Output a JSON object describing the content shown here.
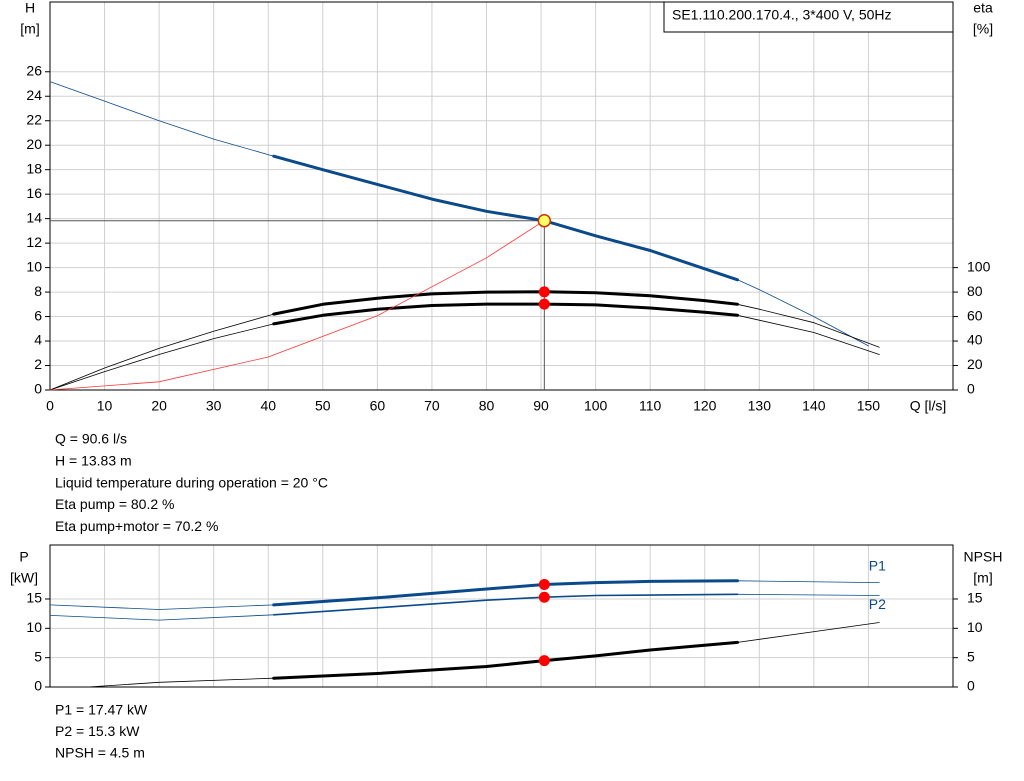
{
  "chart_data": [
    {
      "type": "line",
      "title": "SE1.110.200.170.4., 3*400 V, 50Hz",
      "y_label": [
        "H",
        "[m]"
      ],
      "y2_label": [
        "eta",
        "[%]"
      ],
      "x_label": "Q [l/s]",
      "xlim": [
        0,
        165.5
      ],
      "ylim": [
        0,
        31.7
      ],
      "y2lim": [
        0,
        317
      ],
      "xticks": [
        0,
        10,
        20,
        30,
        40,
        50,
        60,
        70,
        80,
        90,
        100,
        110,
        120,
        130,
        140,
        150
      ],
      "yticks": [
        0,
        2,
        4,
        6,
        8,
        10,
        12,
        14,
        16,
        18,
        20,
        22,
        24,
        26
      ],
      "y2ticks": [
        0,
        20,
        40,
        60,
        80,
        100
      ],
      "grid": true,
      "series": [
        {
          "color": "#0a4a8a",
          "width": 0.8,
          "x": [
            0,
            10,
            20,
            30,
            41,
            50,
            60,
            70,
            80,
            90.6,
            100,
            110,
            120,
            126,
            130,
            140,
            150
          ],
          "values": [
            25.2,
            23.6,
            22.0,
            20.5,
            19.1,
            18.0,
            16.8,
            15.6,
            14.6,
            13.83,
            12.6,
            11.4,
            9.9,
            9.0,
            8.2,
            6.0,
            3.6
          ]
        },
        {
          "color": "#0a4a8a",
          "width": 3,
          "x": [
            41,
            50,
            60,
            70,
            80,
            90.6,
            100,
            110,
            120,
            126
          ],
          "values": [
            19.1,
            18.0,
            16.8,
            15.6,
            14.6,
            13.83,
            12.6,
            11.4,
            9.9,
            9.0
          ]
        },
        {
          "color": "#000000",
          "width": 0.8,
          "axis": "y2",
          "x": [
            0,
            10,
            20,
            30,
            41,
            50,
            60,
            70,
            80,
            90.6,
            100,
            110,
            120,
            126,
            130,
            140,
            152
          ],
          "values": [
            0,
            18,
            34,
            48,
            62,
            70,
            75,
            78.5,
            80,
            80.2,
            79.5,
            77,
            73,
            70,
            66,
            55,
            35
          ]
        },
        {
          "color": "#000000",
          "width": 3,
          "axis": "y2",
          "x": [
            41,
            50,
            60,
            70,
            80,
            90.6,
            100,
            110,
            120,
            126
          ],
          "values": [
            62,
            70,
            75,
            78.5,
            80,
            80.2,
            79.5,
            77,
            73,
            70
          ]
        },
        {
          "color": "#000000",
          "width": 0.8,
          "axis": "y2",
          "x": [
            0,
            10,
            20,
            30,
            41,
            50,
            60,
            70,
            80,
            90.6,
            100,
            110,
            120,
            126,
            130,
            140,
            152
          ],
          "values": [
            0,
            15,
            29,
            42,
            54,
            61,
            66,
            69,
            70.2,
            70.2,
            69.5,
            67,
            63.5,
            61,
            57,
            47,
            29
          ]
        },
        {
          "color": "#000000",
          "width": 3,
          "axis": "y2",
          "x": [
            41,
            50,
            60,
            70,
            80,
            90.6,
            100,
            110,
            120,
            126
          ],
          "values": [
            54,
            61,
            66,
            69,
            70.2,
            70.2,
            69.5,
            67,
            63.5,
            61
          ]
        },
        {
          "color": "#ff3333",
          "width": 0.8,
          "x": [
            0,
            20,
            40,
            60,
            80,
            90.6
          ],
          "values": [
            0,
            0.67,
            2.7,
            6.07,
            10.8,
            13.83
          ]
        }
      ],
      "markers": [
        {
          "x": 90.6,
          "y": 13.83,
          "color": "#ffff66",
          "crosshair": true
        },
        {
          "x": 90.6,
          "y": 80.2,
          "axis": "y2",
          "color": "#ff0000"
        },
        {
          "x": 90.6,
          "y": 70.2,
          "axis": "y2",
          "color": "#ff0000"
        }
      ],
      "info": [
        "Q = 90.6 l/s",
        "H = 13.83 m",
        "Liquid temperature during operation = 20 °C",
        "Eta pump = 80.2 %",
        "Eta pump+motor = 70.2 %"
      ]
    },
    {
      "type": "line",
      "y_label": [
        "P",
        "[kW]"
      ],
      "y2_label": [
        "NPSH",
        "[m]"
      ],
      "xlim": [
        0,
        165.5
      ],
      "ylim": [
        0,
        24.2
      ],
      "y2lim": [
        0,
        24.2
      ],
      "xticks": [
        0,
        10,
        20,
        30,
        40,
        50,
        60,
        70,
        80,
        90,
        100,
        110,
        120,
        130,
        140,
        150
      ],
      "yticks": [
        0,
        5,
        10,
        15
      ],
      "y2ticks": [
        0,
        5,
        10,
        15
      ],
      "grid": true,
      "series": [
        {
          "name": "P1",
          "color": "#0a4a8a",
          "width": 0.8,
          "x": [
            0,
            20,
            41,
            60,
            80,
            90.6,
            100,
            110,
            126,
            152
          ],
          "values": [
            14.0,
            13.2,
            14.0,
            15.2,
            16.7,
            17.47,
            17.8,
            18.0,
            18.1,
            17.8
          ]
        },
        {
          "color": "#0a4a8a",
          "width": 3,
          "x": [
            41,
            60,
            80,
            90.6,
            100,
            110,
            126
          ],
          "values": [
            14.0,
            15.2,
            16.7,
            17.47,
            17.8,
            18.0,
            18.1
          ]
        },
        {
          "name": "P2",
          "color": "#0a4a8a",
          "width": 0.8,
          "x": [
            0,
            20,
            41,
            60,
            80,
            90.6,
            100,
            126,
            152
          ],
          "values": [
            12.2,
            11.4,
            12.3,
            13.5,
            14.8,
            15.3,
            15.6,
            15.8,
            15.6
          ]
        },
        {
          "color": "#0a4a8a",
          "width": 1.6,
          "x": [
            41,
            60,
            80,
            90.6,
            100,
            126
          ],
          "values": [
            12.3,
            13.5,
            14.8,
            15.3,
            15.6,
            15.8
          ]
        },
        {
          "color": "#000000",
          "width": 0.8,
          "axis": "y2",
          "x": [
            7,
            20,
            41,
            60,
            80,
            90.6,
            100,
            110,
            126,
            152
          ],
          "values": [
            0,
            0.8,
            1.5,
            2.3,
            3.5,
            4.5,
            5.3,
            6.3,
            7.6,
            11.0
          ]
        },
        {
          "color": "#000000",
          "width": 3,
          "axis": "y2",
          "x": [
            41,
            60,
            80,
            90.6,
            100,
            110,
            126
          ],
          "values": [
            1.5,
            2.3,
            3.5,
            4.5,
            5.3,
            6.3,
            7.6
          ]
        }
      ],
      "markers": [
        {
          "x": 90.6,
          "y": 17.47,
          "color": "#ff0000"
        },
        {
          "x": 90.6,
          "y": 15.3,
          "color": "#ff0000"
        },
        {
          "x": 90.6,
          "y": 4.5,
          "axis": "y2",
          "color": "#ff0000"
        }
      ],
      "info": [
        "P1 = 17.47 kW",
        "P2 = 15.3 kW",
        "NPSH = 4.5 m"
      ]
    }
  ]
}
